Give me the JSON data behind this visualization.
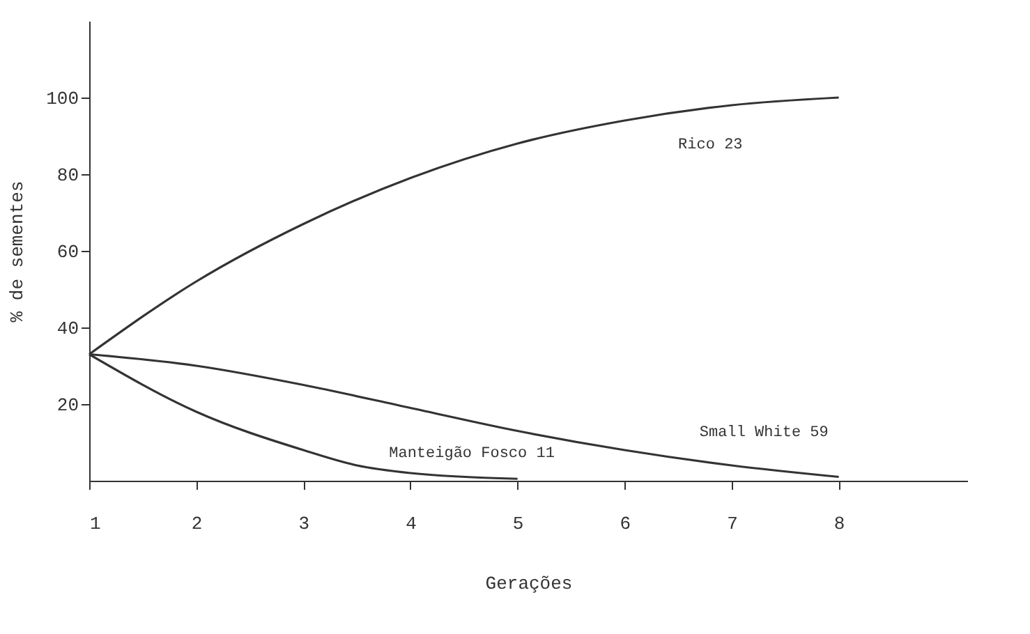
{
  "chart_data": {
    "type": "line",
    "xlabel": "Gerações",
    "ylabel": "% de sementes",
    "xlim": [
      1,
      9.2
    ],
    "xticks": [
      1,
      2,
      3,
      4,
      5,
      6,
      7,
      8
    ],
    "ylim": [
      0,
      120
    ],
    "yticks": [
      20,
      40,
      60,
      80,
      100
    ],
    "grid": false,
    "legend": false,
    "marker": "none",
    "line_style": "solid",
    "series": [
      {
        "name": "Rico 23",
        "color": "#333333",
        "x": [
          1,
          2,
          3,
          4,
          5,
          6,
          7,
          8
        ],
        "values": [
          33,
          52,
          67,
          79,
          88,
          94,
          98,
          100
        ]
      },
      {
        "name": "Manteigão Fosco 11",
        "color": "#333333",
        "x": [
          1,
          2,
          3,
          3.5,
          4,
          5
        ],
        "values": [
          33,
          18,
          8,
          4,
          2,
          0.5
        ]
      },
      {
        "name": "Small White 59",
        "color": "#333333",
        "x": [
          1,
          2,
          3,
          4,
          5,
          6,
          7,
          8
        ],
        "values": [
          33,
          30,
          25,
          19,
          13,
          8,
          4,
          1
        ]
      }
    ]
  }
}
